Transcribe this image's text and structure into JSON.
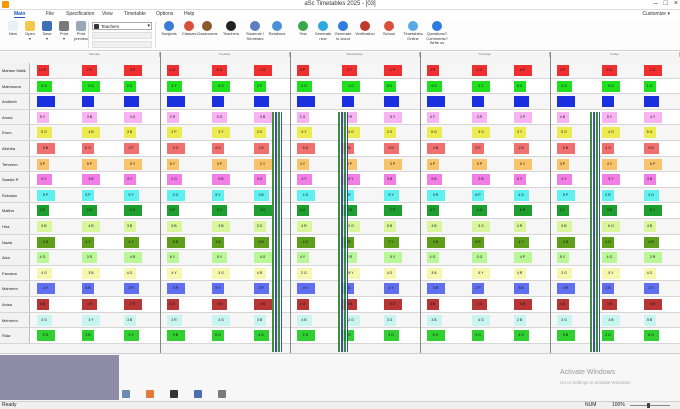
{
  "window": {
    "title": "aSc Timetables 2025 - [03]",
    "controls": [
      "–",
      "□",
      "×"
    ]
  },
  "menu": {
    "items": [
      "Main",
      "File",
      "Specification",
      "View",
      "Timetable",
      "Options",
      "Help"
    ],
    "active": "Main",
    "customize": "Customize ▾"
  },
  "ribbon": {
    "view_select": "Teachers",
    "buttons": [
      {
        "label": "New",
        "icon": "new-file-icon",
        "color": "#e9eef7"
      },
      {
        "label": "Open\n▾",
        "icon": "folder-open-icon",
        "color": "#f2c94c"
      },
      {
        "label": "Save\n▾",
        "icon": "save-icon",
        "color": "#3d6fb5"
      },
      {
        "label": "Print\n▾",
        "icon": "printer-icon",
        "color": "#7a7a7a"
      },
      {
        "label": "Print\npreview",
        "icon": "print-preview-icon",
        "color": "#9aa7b8"
      }
    ],
    "buttons2": [
      {
        "label": "Subjects",
        "icon": "subjects-icon",
        "color": "#3b7bd6"
      },
      {
        "label": "Classes",
        "icon": "classes-icon",
        "color": "#d94f3d"
      },
      {
        "label": "Classrooms",
        "icon": "classrooms-icon",
        "color": "#8b5a2b"
      },
      {
        "label": "Teachers",
        "icon": "teachers-icon",
        "color": "#222222"
      },
      {
        "label": "Students /\nSeminars",
        "icon": "students-icon",
        "color": "#5d7fbf"
      },
      {
        "label": "Relations",
        "icon": "relations-icon",
        "color": "#4a90d9"
      },
      {
        "label": "Test",
        "icon": "test-icon",
        "color": "#3aa84a"
      },
      {
        "label": "Generate\nnew",
        "icon": "generate-new-icon",
        "color": "#2fa8e0"
      },
      {
        "label": "Generate\nin cloud",
        "icon": "generate-cloud-icon",
        "color": "#2f7de0"
      },
      {
        "label": "Verification",
        "icon": "verification-icon",
        "color": "#c0392b"
      },
      {
        "label": "School",
        "icon": "school-icon",
        "color": "#d94f3d"
      },
      {
        "label": "Timetables\nOnline",
        "icon": "cloud-icon",
        "color": "#5aa9e6"
      },
      {
        "label": "Questions?\nComments? Write us",
        "icon": "help-icon",
        "color": "#2d7be0"
      }
    ]
  },
  "timetable": {
    "days": [
      "Monday",
      "Tuesday",
      "Wednesday",
      "Thursday",
      "Friday"
    ],
    "rows": [
      {
        "name": "Mariam Malik",
        "color": "#f03030",
        "cells": [
          "10 P",
          "2 P",
          "3 P",
          "4 G",
          "6 G",
          "2 G",
          "5 P",
          "3 Y",
          "1 P",
          "4 R",
          "2 G",
          "6 P",
          "3 P",
          "5 G",
          "2 G"
        ]
      },
      {
        "name": "Maimoona",
        "color": "#1ee01e",
        "cells": [
          "5 G",
          "3 G",
          "2 G",
          "4 Y",
          "6 G",
          "2 P",
          "3 G",
          "1 G",
          "5 G",
          "4 G",
          "2 Y",
          "6 G",
          "3 G",
          "5 G",
          "1 G"
        ]
      },
      {
        "name": "Andleeb",
        "color": "#1a2fe0",
        "cells": [
          "",
          "",
          "",
          "",
          "",
          "",
          "",
          "",
          "",
          "",
          "",
          "",
          "",
          "",
          ""
        ]
      },
      {
        "name": "Amna",
        "color": "#f7b3f2",
        "cells": [
          "5 Y",
          "3 B",
          "4 G",
          "2 R",
          "3 G",
          "3 B",
          "2 G",
          "2 R",
          "5 Y",
          "4 Y",
          "3 R",
          "2 P",
          "4 B",
          "5 Y",
          "4 Y"
        ]
      },
      {
        "name": "Erum",
        "color": "#ecec50",
        "cells": [
          "5 G",
          "4 B",
          "3 B",
          "2 P",
          "3 Y",
          "3 G",
          "5 Y",
          "4 G",
          "2 G",
          "5 G",
          "3 G",
          "3 Y",
          "5 G",
          "4 G",
          "5 G"
        ]
      },
      {
        "name": "Alishba",
        "color": "#f07070",
        "cells": [
          "5 B",
          "6 G",
          "2 P",
          "3 G",
          "4 G",
          "2 B",
          "5 G",
          "3 B",
          "5 B",
          "4 B",
          "3 P",
          "2 B",
          "6 B",
          "4 G",
          "5 B"
        ]
      },
      {
        "name": "Tehreem",
        "color": "#f7c36b",
        "cells": [
          "3 P",
          "5 P",
          "5 Y",
          "5 Y",
          "3 P",
          "2 Y",
          "4 Y",
          "6 P",
          "3 P",
          "4 P",
          "5 P",
          "5 Y",
          "3 P",
          "4 Y",
          "6 P"
        ]
      },
      {
        "name": "Saadia R",
        "color": "#f27de6",
        "cells": [
          "6 Y",
          "3 B",
          "4 Y",
          "2 G",
          "5 B",
          "3 G",
          "4 Y",
          "6 Y",
          "3 B",
          "5 B",
          "2 B",
          "6 Y",
          "4 Y",
          "5 Y",
          "3 B"
        ]
      },
      {
        "name": "Rubaisa",
        "color": "#5ff0f0",
        "cells": [
          "5 P",
          "5 P",
          "5 Y",
          "3 G",
          "5 Y",
          "3 B",
          "4 G",
          "2 R",
          "5 Y",
          "3 R",
          "6 P",
          "4 G",
          "5 P",
          "2 R",
          "4 G"
        ]
      },
      {
        "name": "Maliha",
        "color": "#1e9e2e",
        "cells": [
          "2 R",
          "3 G",
          "5 G",
          "6 P",
          "2 Y",
          "3 G",
          "4 G",
          "5 R",
          "2 P",
          "3 Y",
          "4 G",
          "6 R",
          "2 Y",
          "3 B",
          "6 Y"
        ]
      },
      {
        "name": "Hira",
        "color": "#d9f79a",
        "cells": [
          "5 B",
          "4 B",
          "3 B",
          "5 B",
          "3 B",
          "3 G",
          "4 R",
          "2 G",
          "5 B",
          "4 B",
          "3 G",
          "4 R",
          "5 B",
          "6 G",
          "4 B"
        ]
      },
      {
        "name": "Nazia",
        "color": "#5f9e1a",
        "cells": [
          "2 B",
          "4 Y",
          "4 Y",
          "5 B",
          "4 B",
          "6 B",
          "4 G",
          "4 R",
          "2 Y",
          "4 B",
          "6 R",
          "4 Y",
          "2 B",
          "4 G",
          "6 B"
        ]
      },
      {
        "name": "Aiza",
        "color": "#b9f797",
        "cells": [
          "4 G",
          "3 R",
          "4 R",
          "6 Y",
          "5 Y",
          "4 G",
          "4 Y",
          "2 R",
          "5 Y",
          "4 G",
          "3 G",
          "4 P",
          "5 Y",
          "4 G",
          "2 R"
        ]
      },
      {
        "name": "Farzana",
        "color": "#f7f7b0",
        "cells": [
          "4 G",
          "3 B",
          "4 G",
          "4 Y",
          "3 G",
          "4 R",
          "2 G",
          "5 Y",
          "4 G",
          "3 B",
          "6 Y",
          "4 R",
          "3 G",
          "5 Y",
          "4 G"
        ]
      },
      {
        "name": "Mahreen",
        "color": "#5f6ff0",
        "cells": [
          "4 Y",
          "5 B",
          "2 R",
          "3 R",
          "5 Y",
          "2 R",
          "4 Y",
          "5 G",
          "4 Y",
          "3 B",
          "2 P",
          "5 B",
          "4 R",
          "2 B",
          "3 Y"
        ]
      },
      {
        "name": "Anisa",
        "color": "#b83535",
        "cells": [
          "5 B",
          "4 B",
          "2 R",
          "3 G",
          "5 B",
          "4 B",
          "2 G",
          "3 B",
          "5 G",
          "4 B",
          "2 G",
          "5 B",
          "4 G",
          "3 B",
          "4 B"
        ]
      },
      {
        "name": "Mehreen",
        "color": "#c9f5f0",
        "cells": [
          "4 G",
          "3 Y",
          "3 B",
          "2 R",
          "4 G",
          "3 B",
          "4 B",
          "2 G",
          "3 G",
          "3 B",
          "4 G",
          "2 B",
          "3 G",
          "4 B",
          "5 B"
        ]
      },
      {
        "name": "Rida",
        "color": "#2fd02f",
        "cells": [
          "5 G",
          "3 B",
          "2 Y",
          "3 B",
          "5 G",
          "4 G",
          "2 G",
          "4 G",
          "3 G",
          "5 G",
          "3 G",
          "4 G",
          "5 B",
          "2 G",
          "6 G"
        ]
      }
    ]
  },
  "bottom_icons": [
    "calendar-icon",
    "students-small-icon",
    "teacher-small-icon",
    "book-icon",
    "document-icon"
  ],
  "watermark": {
    "line1": "Activate Windows",
    "line2": "Go to Settings to activate Windows."
  },
  "status": {
    "left": "Ready",
    "mid": "NUM",
    "zoom": "100%",
    "zoom_level": 1.0
  }
}
